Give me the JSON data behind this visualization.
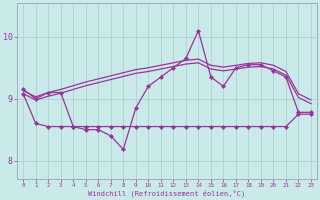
{
  "xlabel": "Windchill (Refroidissement éolien,°C)",
  "bg_color": "#caeaea",
  "line_color": "#993399",
  "grid_color": "#aacccc",
  "ylim": [
    7.7,
    10.55
  ],
  "xlim": [
    -0.5,
    23.5
  ],
  "y_ticks": [
    8,
    9,
    10
  ],
  "x_ticks": [
    0,
    1,
    2,
    3,
    4,
    5,
    6,
    7,
    8,
    9,
    10,
    11,
    12,
    13,
    14,
    15,
    16,
    17,
    18,
    19,
    20,
    21,
    22,
    23
  ],
  "series_spiky": [
    9.15,
    9.0,
    9.1,
    9.1,
    8.55,
    8.5,
    8.5,
    8.4,
    8.18,
    8.85,
    9.2,
    9.35,
    9.5,
    9.65,
    10.1,
    9.35,
    9.2,
    9.5,
    9.55,
    9.55,
    9.45,
    9.35,
    8.78,
    8.78
  ],
  "series_upper1": [
    9.13,
    9.03,
    9.1,
    9.15,
    9.21,
    9.27,
    9.32,
    9.37,
    9.42,
    9.47,
    9.5,
    9.54,
    9.58,
    9.62,
    9.64,
    9.54,
    9.51,
    9.54,
    9.57,
    9.58,
    9.54,
    9.44,
    9.08,
    8.98
  ],
  "series_upper2": [
    9.08,
    8.98,
    9.04,
    9.09,
    9.15,
    9.21,
    9.26,
    9.31,
    9.36,
    9.41,
    9.44,
    9.48,
    9.52,
    9.56,
    9.58,
    9.48,
    9.45,
    9.48,
    9.51,
    9.52,
    9.48,
    9.38,
    9.02,
    8.92
  ],
  "series_lower": [
    9.08,
    8.6,
    8.55,
    8.55,
    8.55,
    8.55,
    8.55,
    8.55,
    8.55,
    8.55,
    8.55,
    8.55,
    8.55,
    8.55,
    8.55,
    8.55,
    8.55,
    8.55,
    8.55,
    8.55,
    8.55,
    8.55,
    8.75,
    8.75
  ]
}
